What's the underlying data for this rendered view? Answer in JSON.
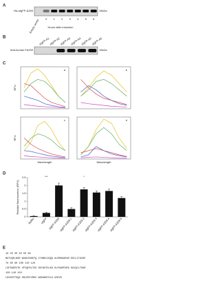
{
  "figure": {
    "A": {
      "label": "A",
      "antibody": "His-sfgFP-A259",
      "marker": "15kDa",
      "lanes": [
        "Empty vector",
        "0",
        "1",
        "2",
        "3",
        "4",
        "5",
        "6"
      ],
      "xlabel": "Hours after induction"
    },
    "B": {
      "label": "B",
      "antibody": "Anti-human FA259",
      "marker": "15kDa",
      "lanes": [
        "sfgFP-A1",
        "sfgFP-A2",
        "sfgFP-A3",
        "sfgFP-A4",
        "sfgFP-A5",
        "sfgFP-A6"
      ]
    },
    "C": {
      "label": "C"
    },
    "D": {
      "label": "D"
    },
    "E": {
      "label": "E",
      "lines": [
        "10         20         30         40         50         60",
        "MATVQELNGR WVAHISNDTQ IYHNELDGQG ALRRHGAPAR EDCLITGCKE",
        "70         80         90        100        110        120",
        "LSPIWEEVTK VPIQPSLTEG SKYGKTDLKG HLPGAPEVRG DAYQCLTDGR",
        "130        140        150",
        "LDGSSTFSQS HSLRSTVRSV WSEHWSTDLG GSEVS"
      ]
    }
  },
  "chart_data": [
    {
      "type": "line",
      "title": "a",
      "ylabel": "RFU",
      "x": [
        500,
        520,
        540,
        560,
        580,
        600,
        620
      ],
      "xlim": [
        490,
        630
      ],
      "ylim": [
        0,
        1
      ],
      "series": [
        {
          "color": "#e8c020",
          "values": [
            0.5,
            0.85,
            0.95,
            0.8,
            0.55,
            0.3,
            0.15
          ]
        },
        {
          "color": "#60b060",
          "values": [
            0.4,
            0.6,
            0.7,
            0.65,
            0.5,
            0.3,
            0.15
          ]
        },
        {
          "color": "#e04040",
          "values": [
            0.6,
            0.55,
            0.4,
            0.25,
            0.15,
            0.1,
            0.05
          ]
        },
        {
          "color": "#4060d0",
          "values": [
            0.3,
            0.25,
            0.2,
            0.12,
            0.08,
            0.05,
            0.03
          ]
        },
        {
          "color": "#d040c0",
          "values": [
            0.1,
            0.08,
            0.06,
            0.05,
            0.04,
            0.03,
            0.02
          ]
        }
      ]
    },
    {
      "type": "line",
      "title": "b",
      "x": [
        500,
        520,
        540,
        560,
        580,
        600,
        620
      ],
      "xlim": [
        490,
        630
      ],
      "ylim": [
        0,
        1
      ],
      "series": [
        {
          "color": "#e8c020",
          "values": [
            0.3,
            0.5,
            0.75,
            0.9,
            0.8,
            0.6,
            0.4
          ]
        },
        {
          "color": "#60b060",
          "values": [
            0.3,
            0.45,
            0.65,
            0.7,
            0.6,
            0.45,
            0.3
          ]
        },
        {
          "color": "#e04040",
          "values": [
            0.7,
            0.5,
            0.35,
            0.25,
            0.2,
            0.15,
            0.1
          ]
        },
        {
          "color": "#4060d0",
          "values": [
            0.4,
            0.55,
            0.45,
            0.3,
            0.2,
            0.12,
            0.08
          ]
        },
        {
          "color": "#d040c0",
          "values": [
            0.15,
            0.12,
            0.1,
            0.08,
            0.06,
            0.05,
            0.04
          ]
        }
      ]
    },
    {
      "type": "line",
      "title": "c",
      "ylabel": "RFU",
      "xlabel": "Wavelength",
      "x": [
        500,
        520,
        540,
        560,
        580,
        600,
        620
      ],
      "xlim": [
        490,
        630
      ],
      "ylim": [
        0,
        1
      ],
      "series": [
        {
          "color": "#e8c020",
          "values": [
            0.2,
            0.4,
            0.8,
            0.9,
            0.7,
            0.4,
            0.2
          ]
        },
        {
          "color": "#60b060",
          "values": [
            0.3,
            0.5,
            0.6,
            0.55,
            0.45,
            0.3,
            0.2
          ]
        },
        {
          "color": "#e04040",
          "values": [
            0.5,
            0.35,
            0.25,
            0.18,
            0.12,
            0.08,
            0.05
          ]
        },
        {
          "color": "#4060d0",
          "values": [
            0.2,
            0.18,
            0.14,
            0.1,
            0.07,
            0.05,
            0.03
          ]
        },
        {
          "color": "#d040c0",
          "values": [
            0.08,
            0.06,
            0.05,
            0.04,
            0.03,
            0.02,
            0.02
          ]
        }
      ]
    },
    {
      "type": "line",
      "title": "d",
      "xlabel": "Wavelength",
      "x": [
        500,
        520,
        540,
        560,
        580,
        600,
        620
      ],
      "xlim": [
        490,
        630
      ],
      "ylim": [
        0,
        1
      ],
      "series": [
        {
          "color": "#e8c020",
          "values": [
            0.1,
            0.3,
            0.7,
            0.95,
            0.85,
            0.5,
            0.25
          ]
        },
        {
          "color": "#60b060",
          "values": [
            0.1,
            0.3,
            0.6,
            0.75,
            0.6,
            0.35,
            0.2
          ]
        },
        {
          "color": "#e04040",
          "values": [
            0.15,
            0.2,
            0.25,
            0.2,
            0.15,
            0.1,
            0.06
          ]
        },
        {
          "color": "#4060d0",
          "values": [
            0.05,
            0.1,
            0.3,
            0.2,
            0.12,
            0.08,
            0.05
          ]
        },
        {
          "color": "#d040c0",
          "values": [
            0.03,
            0.04,
            0.05,
            0.04,
            0.03,
            0.02,
            0.02
          ]
        }
      ]
    },
    {
      "type": "bar",
      "ylabel": "Relative fluorescence (RFU)",
      "color": "#111111",
      "categories": [
        "Buffer",
        "sfgFP",
        "sfgFP-A259",
        "sfgFP-A259-1",
        "sfgFP-A259-2",
        "sfgFP-A259-3",
        "sfgFP-A259-4",
        "sfgFP-A259-5"
      ],
      "values": [
        0.05,
        0.25,
        2.0,
        0.5,
        1.75,
        1.55,
        1.65,
        1.2
      ],
      "errors": [
        0.02,
        0.05,
        0.15,
        0.08,
        0.12,
        0.1,
        0.12,
        0.1
      ],
      "ylim": [
        0,
        2.5
      ],
      "yticks": [
        0,
        0.5,
        1,
        1.5,
        2,
        2.5
      ],
      "annotations": [
        "***",
        "*"
      ]
    }
  ]
}
